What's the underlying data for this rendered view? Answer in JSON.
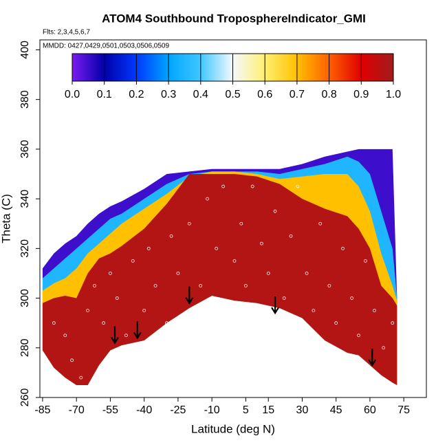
{
  "chart_data": {
    "type": "field",
    "title": "ATOM4 Southbound TroposphereIndicator_GMI",
    "annotations": [
      "Flts: 2,3,4,5,6,7",
      "MMDD: 0427,0429,0501,0503,0506,0509"
    ],
    "xlabel": "Latitude (deg N)",
    "ylabel": "Theta (C)",
    "xlim": [
      -86.2,
      85
    ],
    "ylim": [
      260,
      404
    ],
    "xticks": [
      -85,
      -70,
      -55,
      -40,
      -25,
      -10,
      5,
      15,
      30,
      45,
      60,
      75
    ],
    "yticks": [
      260,
      280,
      300,
      320,
      340,
      360,
      380,
      400
    ],
    "colorbar": {
      "ticks": [
        {
          "value": 0,
          "label": "0.0"
        },
        0.1,
        0.2,
        0.3,
        0.4,
        0.5,
        0.6,
        0.7,
        0.8,
        0.9,
        {
          "value": 1,
          "label": "1.0"
        }
      ],
      "colors": [
        "#7a1cf0",
        "#0000a8",
        "#0038ff",
        "#00a4ff",
        "#40c8ff",
        "#f4f8ff",
        "#fff070",
        "#ffc000",
        "#ff6000",
        "#e00000",
        "#a01c1c"
      ]
    },
    "lat": [
      -85,
      -80,
      -75,
      -70,
      -65,
      -60,
      -55,
      -50,
      -40,
      -30,
      -20,
      -10,
      0,
      10,
      20,
      30,
      40,
      50,
      55,
      60,
      65,
      70,
      72
    ],
    "lower": [
      279,
      272,
      268,
      265,
      265,
      273,
      279,
      281,
      283,
      290,
      296,
      301,
      299,
      298,
      296,
      292,
      283,
      278,
      277,
      273,
      269,
      266,
      265
    ],
    "layers": [
      {
        "value": 0.05,
        "upper": [
          312,
          318,
          322,
          325,
          330,
          334,
          337,
          339,
          344,
          350,
          351,
          352,
          352,
          352,
          352,
          354,
          357,
          359,
          360,
          360,
          360,
          360,
          300
        ]
      },
      {
        "value": 0.35,
        "upper": [
          308,
          312,
          316,
          320,
          324,
          328,
          332,
          334,
          340,
          346,
          350,
          351,
          351,
          351,
          350,
          352,
          354,
          357,
          355,
          350,
          335,
          320,
          300
        ]
      },
      {
        "value": 0.7,
        "upper": [
          303,
          306,
          308,
          312,
          318,
          322,
          326,
          330,
          336,
          342,
          349,
          351,
          351,
          350,
          348,
          349,
          350,
          350,
          345,
          335,
          318,
          305,
          299
        ]
      },
      {
        "value": 0.97,
        "upper": [
          298,
          300,
          301,
          300,
          310,
          316,
          318,
          321,
          328,
          338,
          350,
          350,
          350,
          349,
          346,
          340,
          336,
          333,
          328,
          320,
          305,
          300,
          297
        ]
      }
    ],
    "points": {
      "lat": [
        -80,
        -75,
        -72,
        -68,
        -65,
        -62,
        -58,
        -55,
        -52,
        -48,
        -45,
        -40,
        -38,
        -35,
        -30,
        -28,
        -25,
        -20,
        -15,
        -12,
        -8,
        -5,
        0,
        3,
        5,
        8,
        12,
        15,
        18,
        22,
        25,
        28,
        32,
        35,
        38,
        42,
        45,
        48,
        52,
        55,
        58,
        62,
        66,
        70
      ],
      "theta": [
        290,
        285,
        275,
        268,
        295,
        305,
        290,
        310,
        300,
        285,
        315,
        295,
        320,
        305,
        290,
        325,
        310,
        330,
        305,
        340,
        320,
        345,
        315,
        330,
        305,
        345,
        322,
        310,
        335,
        300,
        325,
        345,
        310,
        295,
        330,
        305,
        290,
        320,
        300,
        285,
        315,
        295,
        280,
        290
      ]
    },
    "arrows": {
      "lat": [
        -53,
        -43,
        -20,
        18,
        61
      ],
      "theta": [
        282,
        284,
        298,
        294,
        273
      ]
    }
  }
}
